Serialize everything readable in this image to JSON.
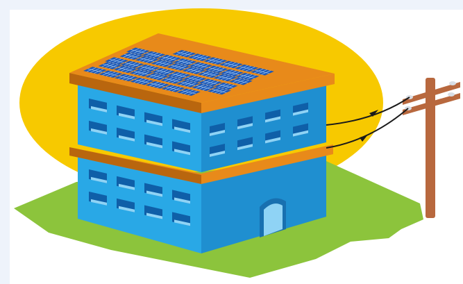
{
  "scene": {
    "subject": "solar-powered-building",
    "colors": {
      "page_background": "#eef3fb",
      "panel_background": "#ffffff",
      "sun": "#f7c900",
      "grass": "#8cc43c",
      "wall_front": "#29a8e6",
      "wall_side": "#1f8fd0",
      "wall_dark": "#1870b0",
      "window_dark": "#0f5fa8",
      "window_light": "#8fd3f5",
      "roof_trim": "#e88a1a",
      "roof_trim_dark": "#b9660e",
      "solar_panel": "#1c58b8",
      "solar_grid": "#9ec6f0",
      "pole": "#b8683e",
      "wire": "#1a1a1a",
      "insulator": "#d8dee6"
    },
    "icons": [
      "sun-disc",
      "grass-lawn",
      "building",
      "solar-panel-array",
      "utility-pole",
      "power-wires"
    ]
  }
}
